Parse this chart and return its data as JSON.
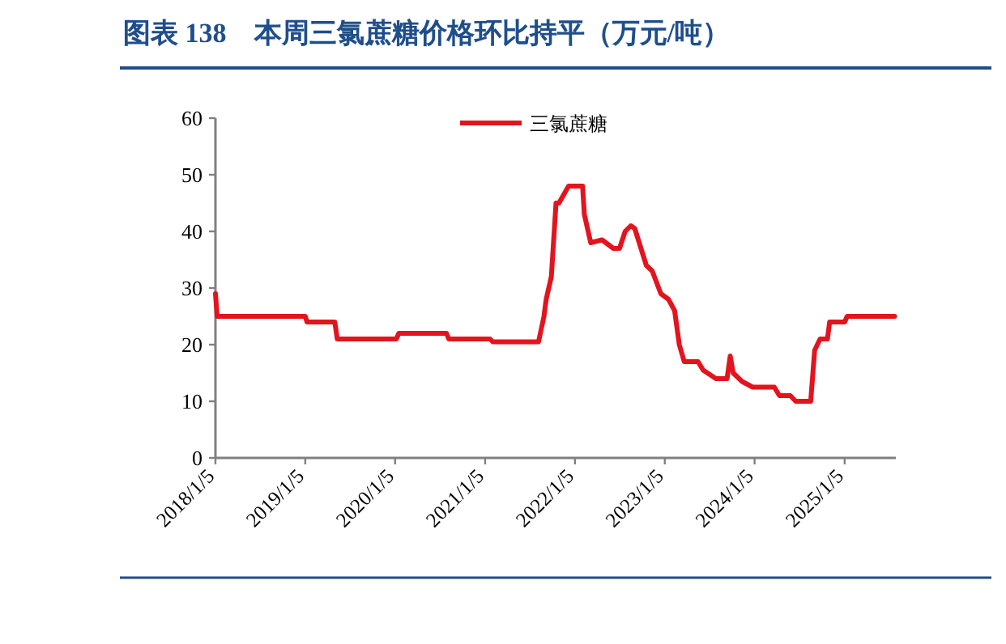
{
  "chart_data": {
    "type": "line",
    "title": "图表 138　本周三氯蔗糖价格环比持平（万元/吨）",
    "x": [
      "2018-01-05",
      "2018-01-12",
      "2019-01-05",
      "2019-01-12",
      "2019-05-05",
      "2019-05-15",
      "2020-01-10",
      "2020-01-20",
      "2020-08-01",
      "2020-08-10",
      "2021-01-25",
      "2021-02-05",
      "2021-08-10",
      "2021-09-01",
      "2021-09-10",
      "2021-10-01",
      "2021-10-20",
      "2021-11-01",
      "2021-12-10",
      "2022-02-05",
      "2022-02-12",
      "2022-03-10",
      "2022-04-25",
      "2022-06-10",
      "2022-07-05",
      "2022-07-28",
      "2022-08-20",
      "2022-09-05",
      "2022-10-22",
      "2022-11-15",
      "2022-12-20",
      "2023-01-20",
      "2023-02-14",
      "2023-03-05",
      "2023-03-25",
      "2023-05-20",
      "2023-06-10",
      "2023-08-01",
      "2023-09-15",
      "2023-09-28",
      "2023-10-10",
      "2023-11-15",
      "2023-12-28",
      "2024-03-25",
      "2024-04-15",
      "2024-05-29",
      "2024-06-20",
      "2024-08-20",
      "2024-09-05",
      "2024-09-27",
      "2024-10-27",
      "2024-11-05",
      "2025-01-05",
      "2025-01-15",
      "2025-07-27"
    ],
    "series": [
      {
        "name": "三氯蔗糖",
        "color": "#e3141e",
        "values": [
          29,
          25,
          25,
          24,
          24,
          21,
          21,
          22,
          22,
          21,
          21,
          20.5,
          20.5,
          25,
          28,
          32,
          45,
          45,
          48,
          48,
          43,
          38,
          38.5,
          37,
          37,
          40,
          41,
          40.5,
          34,
          33,
          29,
          28,
          26,
          20,
          17,
          17,
          15.5,
          14,
          14,
          18,
          15,
          13.5,
          12.5,
          12.5,
          11,
          11,
          10,
          10,
          19,
          21,
          21,
          24,
          24,
          25,
          25
        ]
      }
    ],
    "xlim": [
      "2018-01-05",
      "2025-08-01"
    ],
    "xticks": [
      {
        "value": "2018-01-05",
        "label": "2018/1/5"
      },
      {
        "value": "2019-01-05",
        "label": "2019/1/5"
      },
      {
        "value": "2020-01-05",
        "label": "2020/1/5"
      },
      {
        "value": "2021-01-05",
        "label": "2021/1/5"
      },
      {
        "value": "2022-01-05",
        "label": "2022/1/5"
      },
      {
        "value": "2023-01-05",
        "label": "2023/1/5"
      },
      {
        "value": "2024-01-05",
        "label": "2024/1/5"
      },
      {
        "value": "2025-01-05",
        "label": "2025/1/5"
      }
    ],
    "ylim": [
      0,
      60
    ],
    "yticks": [
      0,
      10,
      20,
      30,
      40,
      50,
      60
    ],
    "legend": "top",
    "grid": false,
    "marker": "none",
    "line_style": "solid"
  }
}
